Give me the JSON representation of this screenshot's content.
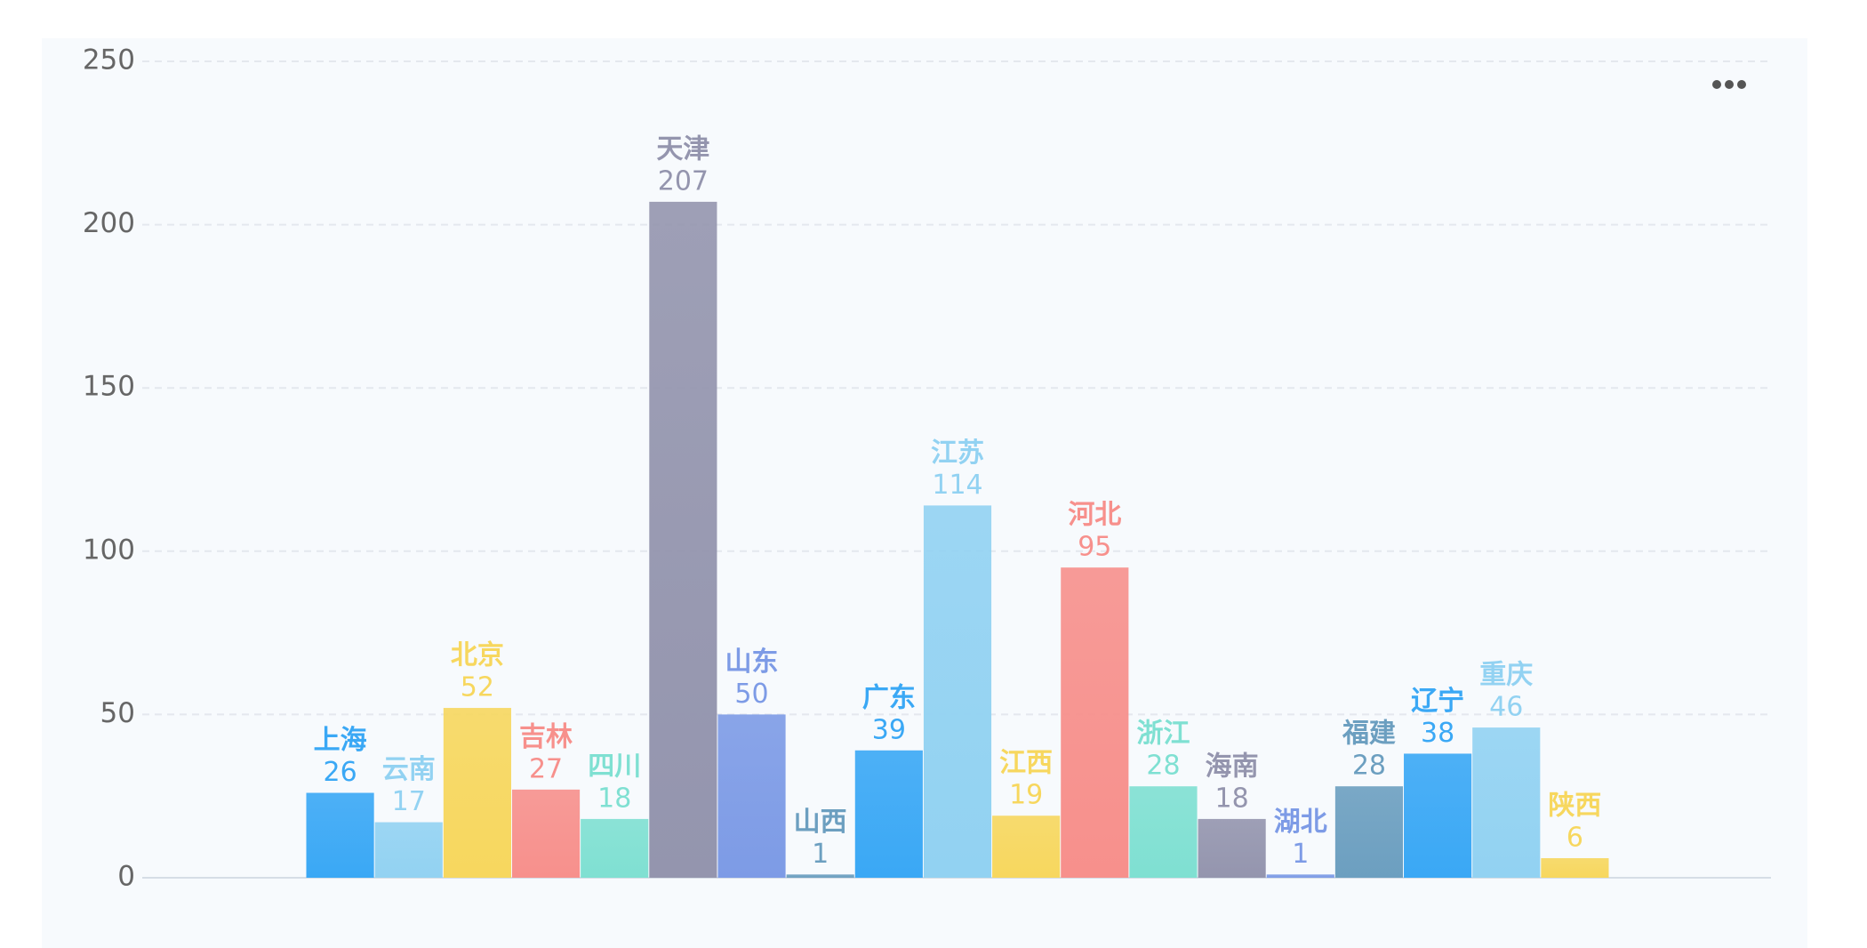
{
  "chart_data": {
    "type": "bar",
    "categories": [
      "上海",
      "云南",
      "北京",
      "吉林",
      "四川",
      "天津",
      "山东",
      "山西",
      "广东",
      "江苏",
      "江西",
      "河北",
      "浙江",
      "海南",
      "湖北",
      "福建",
      "辽宁",
      "重庆",
      "陕西"
    ],
    "values": [
      26,
      17,
      52,
      27,
      18,
      207,
      50,
      1,
      39,
      114,
      19,
      95,
      28,
      18,
      1,
      28,
      38,
      46,
      6
    ],
    "colors": [
      "#3aa8f5",
      "#92d2f2",
      "#f7d75e",
      "#f7908c",
      "#7fe0d2",
      "#9495ae",
      "#7d9be6",
      "#6c9fc0",
      "#3aa8f5",
      "#92d2f2",
      "#f7d75e",
      "#f7908c",
      "#7fe0d2",
      "#9495ae",
      "#7d9be6",
      "#6c9fc0",
      "#3aa8f5",
      "#92d2f2",
      "#f7d75e"
    ],
    "ylim": [
      0,
      250
    ],
    "yticks": [
      0,
      50,
      100,
      150,
      200,
      250
    ],
    "grid": true
  }
}
